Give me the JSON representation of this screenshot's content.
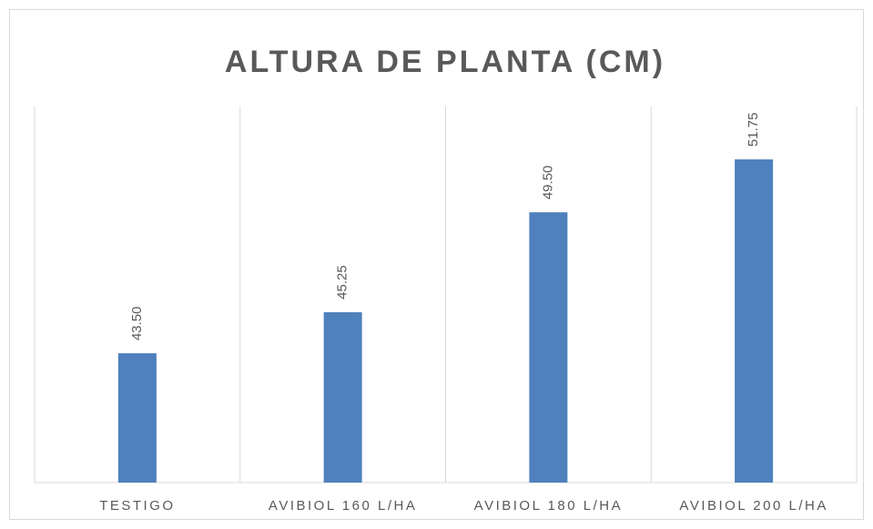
{
  "chart_data": {
    "type": "bar",
    "title": "ALTURA DE PLANTA (CM)",
    "categories": [
      "TESTIGO",
      "AVIBIOL 160 L/HA",
      "AVIBIOL 180 L/HA",
      "AVIBIOL 200 L/HA"
    ],
    "values": [
      43.5,
      45.25,
      49.5,
      51.75
    ],
    "value_labels": [
      "43.50",
      "45.25",
      "49.50",
      "51.75"
    ],
    "color": "#4f81bd",
    "ylim": [
      38,
      54
    ],
    "grid": true
  }
}
